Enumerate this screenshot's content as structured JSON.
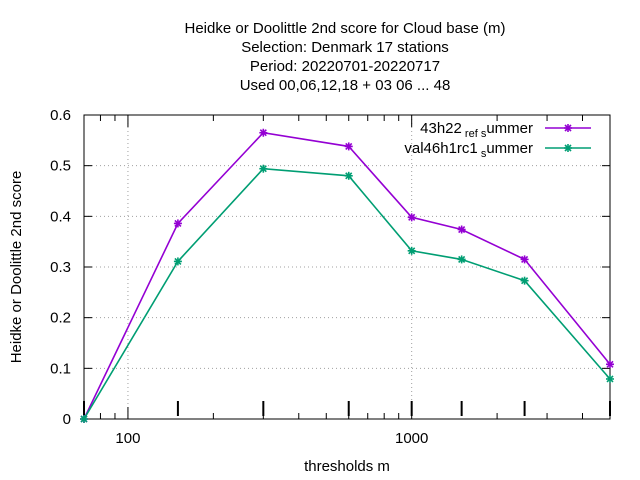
{
  "chart_data": {
    "type": "line",
    "title_lines": [
      "Heidke or Doolittle 2nd score  for Cloud base (m)",
      "Selection: Denmark     17 stations",
      "Period: 20220701-20220717",
      "Used  00,06,12,18  + 03 06 ... 48"
    ],
    "xlabel": "thresholds m",
    "ylabel": "Heidke or Doolittle 2nd score",
    "x_scale": "log",
    "xlim": [
      70,
      5000
    ],
    "ylim": [
      0,
      0.6
    ],
    "y_ticks": [
      "0",
      "0.1",
      "0.2",
      "0.3",
      "0.4",
      "0.5",
      "0.6"
    ],
    "x_tick_labels": [
      "100",
      "1000"
    ],
    "grid": true,
    "legend_position": "top-right",
    "x": [
      70,
      150,
      300,
      600,
      1000,
      1500,
      2500,
      5000
    ],
    "series": [
      {
        "name_main": "43h22",
        "name_sub1": "ref",
        "name_mid": "",
        "name_sub2": "s",
        "name_end": "ummer",
        "color": "#9400d3",
        "values": [
          0.0,
          0.386,
          0.565,
          0.538,
          0.398,
          0.374,
          0.315,
          0.108
        ]
      },
      {
        "name_main": "val46h1rc1",
        "name_sub1": "",
        "name_mid": "",
        "name_sub2": "s",
        "name_end": "ummer",
        "color": "#009e73",
        "values": [
          0.0,
          0.311,
          0.494,
          0.48,
          0.332,
          0.315,
          0.273,
          0.079
        ]
      }
    ]
  }
}
